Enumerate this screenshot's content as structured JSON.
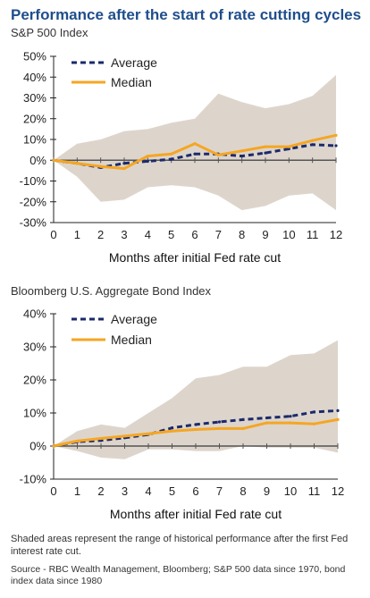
{
  "title": "Performance after the start of rate cutting cycles",
  "chart_data": [
    {
      "type": "line",
      "title": "S&P 500 Index",
      "xlabel": "Months after initial Fed rate cut",
      "ylabel": "",
      "x": [
        0,
        1,
        2,
        3,
        4,
        5,
        6,
        7,
        8,
        9,
        10,
        11,
        12
      ],
      "xlim": [
        0,
        12
      ],
      "ylim": [
        -30,
        50
      ],
      "yticks": [
        -30,
        -20,
        -10,
        0,
        10,
        20,
        30,
        40,
        50
      ],
      "ytick_labels": [
        "-30%",
        "-20%",
        "-10%",
        "0%",
        "10%",
        "20%",
        "30%",
        "40%",
        "50%"
      ],
      "legend": "top-left",
      "series": [
        {
          "name": "Average",
          "style": "dashed",
          "color": "#1b2a6b",
          "values": [
            0,
            -1.5,
            -3.5,
            -1.5,
            -0.5,
            0.5,
            3,
            3,
            2,
            3.5,
            5.5,
            7.5,
            7
          ]
        },
        {
          "name": "Median",
          "style": "solid",
          "color": "#f5a623",
          "values": [
            0,
            -1.5,
            -3,
            -4,
            2,
            3,
            8,
            2.5,
            4.5,
            6.5,
            6.5,
            9.5,
            12
          ]
        }
      ],
      "range": {
        "color": "#ddd5cc",
        "upper": [
          0,
          8,
          10,
          14,
          15,
          18,
          20,
          32,
          28,
          25,
          27,
          31,
          41
        ],
        "lower": [
          0,
          -8,
          -20,
          -19,
          -13,
          -12,
          -13,
          -17,
          -24,
          -22,
          -17,
          -16,
          -24
        ]
      }
    },
    {
      "type": "line",
      "title": "Bloomberg U.S. Aggregate Bond Index",
      "xlabel": "Months after initial Fed rate cut",
      "ylabel": "",
      "x": [
        0,
        1,
        2,
        3,
        4,
        5,
        6,
        7,
        8,
        9,
        10,
        11,
        12
      ],
      "xlim": [
        0,
        12
      ],
      "ylim": [
        -10,
        40
      ],
      "yticks": [
        -10,
        0,
        10,
        20,
        30,
        40
      ],
      "ytick_labels": [
        "-10%",
        "0%",
        "10%",
        "20%",
        "30%",
        "40%"
      ],
      "legend": "top-left",
      "series": [
        {
          "name": "Average",
          "style": "dashed",
          "color": "#1b2a6b",
          "values": [
            0,
            1.3,
            1.7,
            2.5,
            3.5,
            5.5,
            6.5,
            7.3,
            8,
            8.5,
            9,
            10.3,
            10.7
          ]
        },
        {
          "name": "Median",
          "style": "solid",
          "color": "#f5a623",
          "values": [
            0,
            1.5,
            2.3,
            3,
            3.7,
            4.5,
            5,
            5.3,
            5.3,
            7,
            7,
            6.7,
            8
          ]
        }
      ],
      "range": {
        "color": "#ddd5cc",
        "upper": [
          0,
          4.5,
          6.5,
          5.5,
          10,
          14.5,
          20.5,
          21.5,
          24,
          24,
          27.5,
          28,
          32
        ],
        "lower": [
          0,
          -1.5,
          -3.5,
          -4,
          -1,
          -1,
          -1.5,
          -1.5,
          0,
          -0.5,
          -0.5,
          -0.5,
          -2
        ]
      }
    }
  ],
  "footnote": "Shaded areas represent the range of historical performance after the first Fed interest rate cut.",
  "source": "Source - RBC Wealth Management, Bloomberg; S&P 500 data since 1970, bond index data since 1980"
}
